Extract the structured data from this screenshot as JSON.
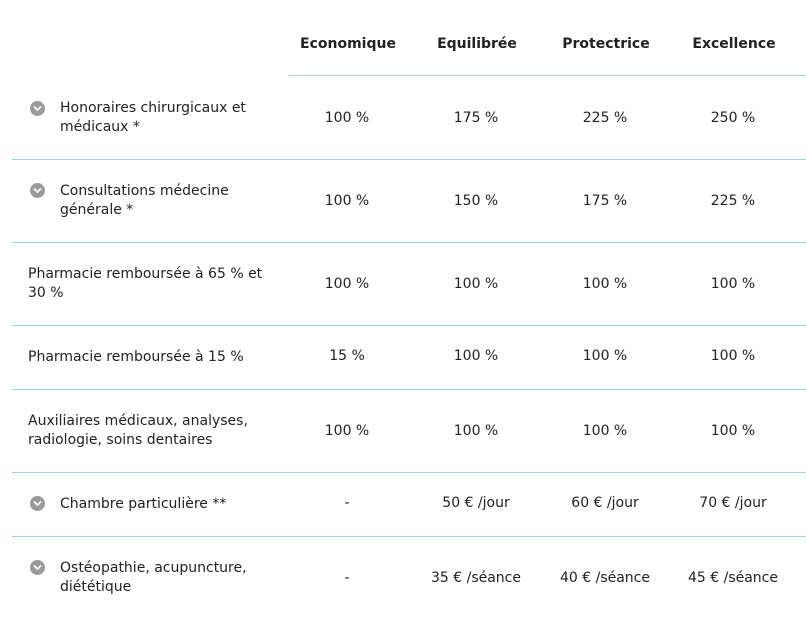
{
  "columns": [
    "Economique",
    "Equilibrée",
    "Protectrice",
    "Excellence"
  ],
  "rows": [
    {
      "label": "Honoraires chirurgicaux et médicaux *",
      "expandable": true,
      "values": [
        "100 %",
        "175 %",
        "225 %",
        "250 %"
      ]
    },
    {
      "label": "Consultations médecine générale *",
      "expandable": true,
      "values": [
        "100 %",
        "150 %",
        "175 %",
        "225 %"
      ]
    },
    {
      "label": "Pharmacie remboursée à 65 % et 30 %",
      "expandable": false,
      "values": [
        "100 %",
        "100 %",
        "100 %",
        "100 %"
      ]
    },
    {
      "label": "Pharmacie remboursée à 15 %",
      "expandable": false,
      "values": [
        "15 %",
        "100 %",
        "100 %",
        "100 %"
      ]
    },
    {
      "label": "Auxiliaires médicaux, analyses, radiologie, soins dentaires",
      "expandable": false,
      "values": [
        "100 %",
        "100 %",
        "100 %",
        "100 %"
      ]
    },
    {
      "label": "Chambre particulière **",
      "expandable": true,
      "values": [
        "-",
        "50 € /jour",
        "60 € /jour",
        "70 € /jour"
      ]
    },
    {
      "label": "Ostéopathie, acupuncture, diététique",
      "expandable": true,
      "values": [
        "-",
        "35 € /séance",
        "40 € /séance",
        "45 € /séance"
      ]
    }
  ],
  "colors": {
    "divider": "#9fd3df",
    "chevron": "#9b9b9b",
    "text": "#222222"
  },
  "icons": {
    "expand": "chevron-down-icon"
  }
}
